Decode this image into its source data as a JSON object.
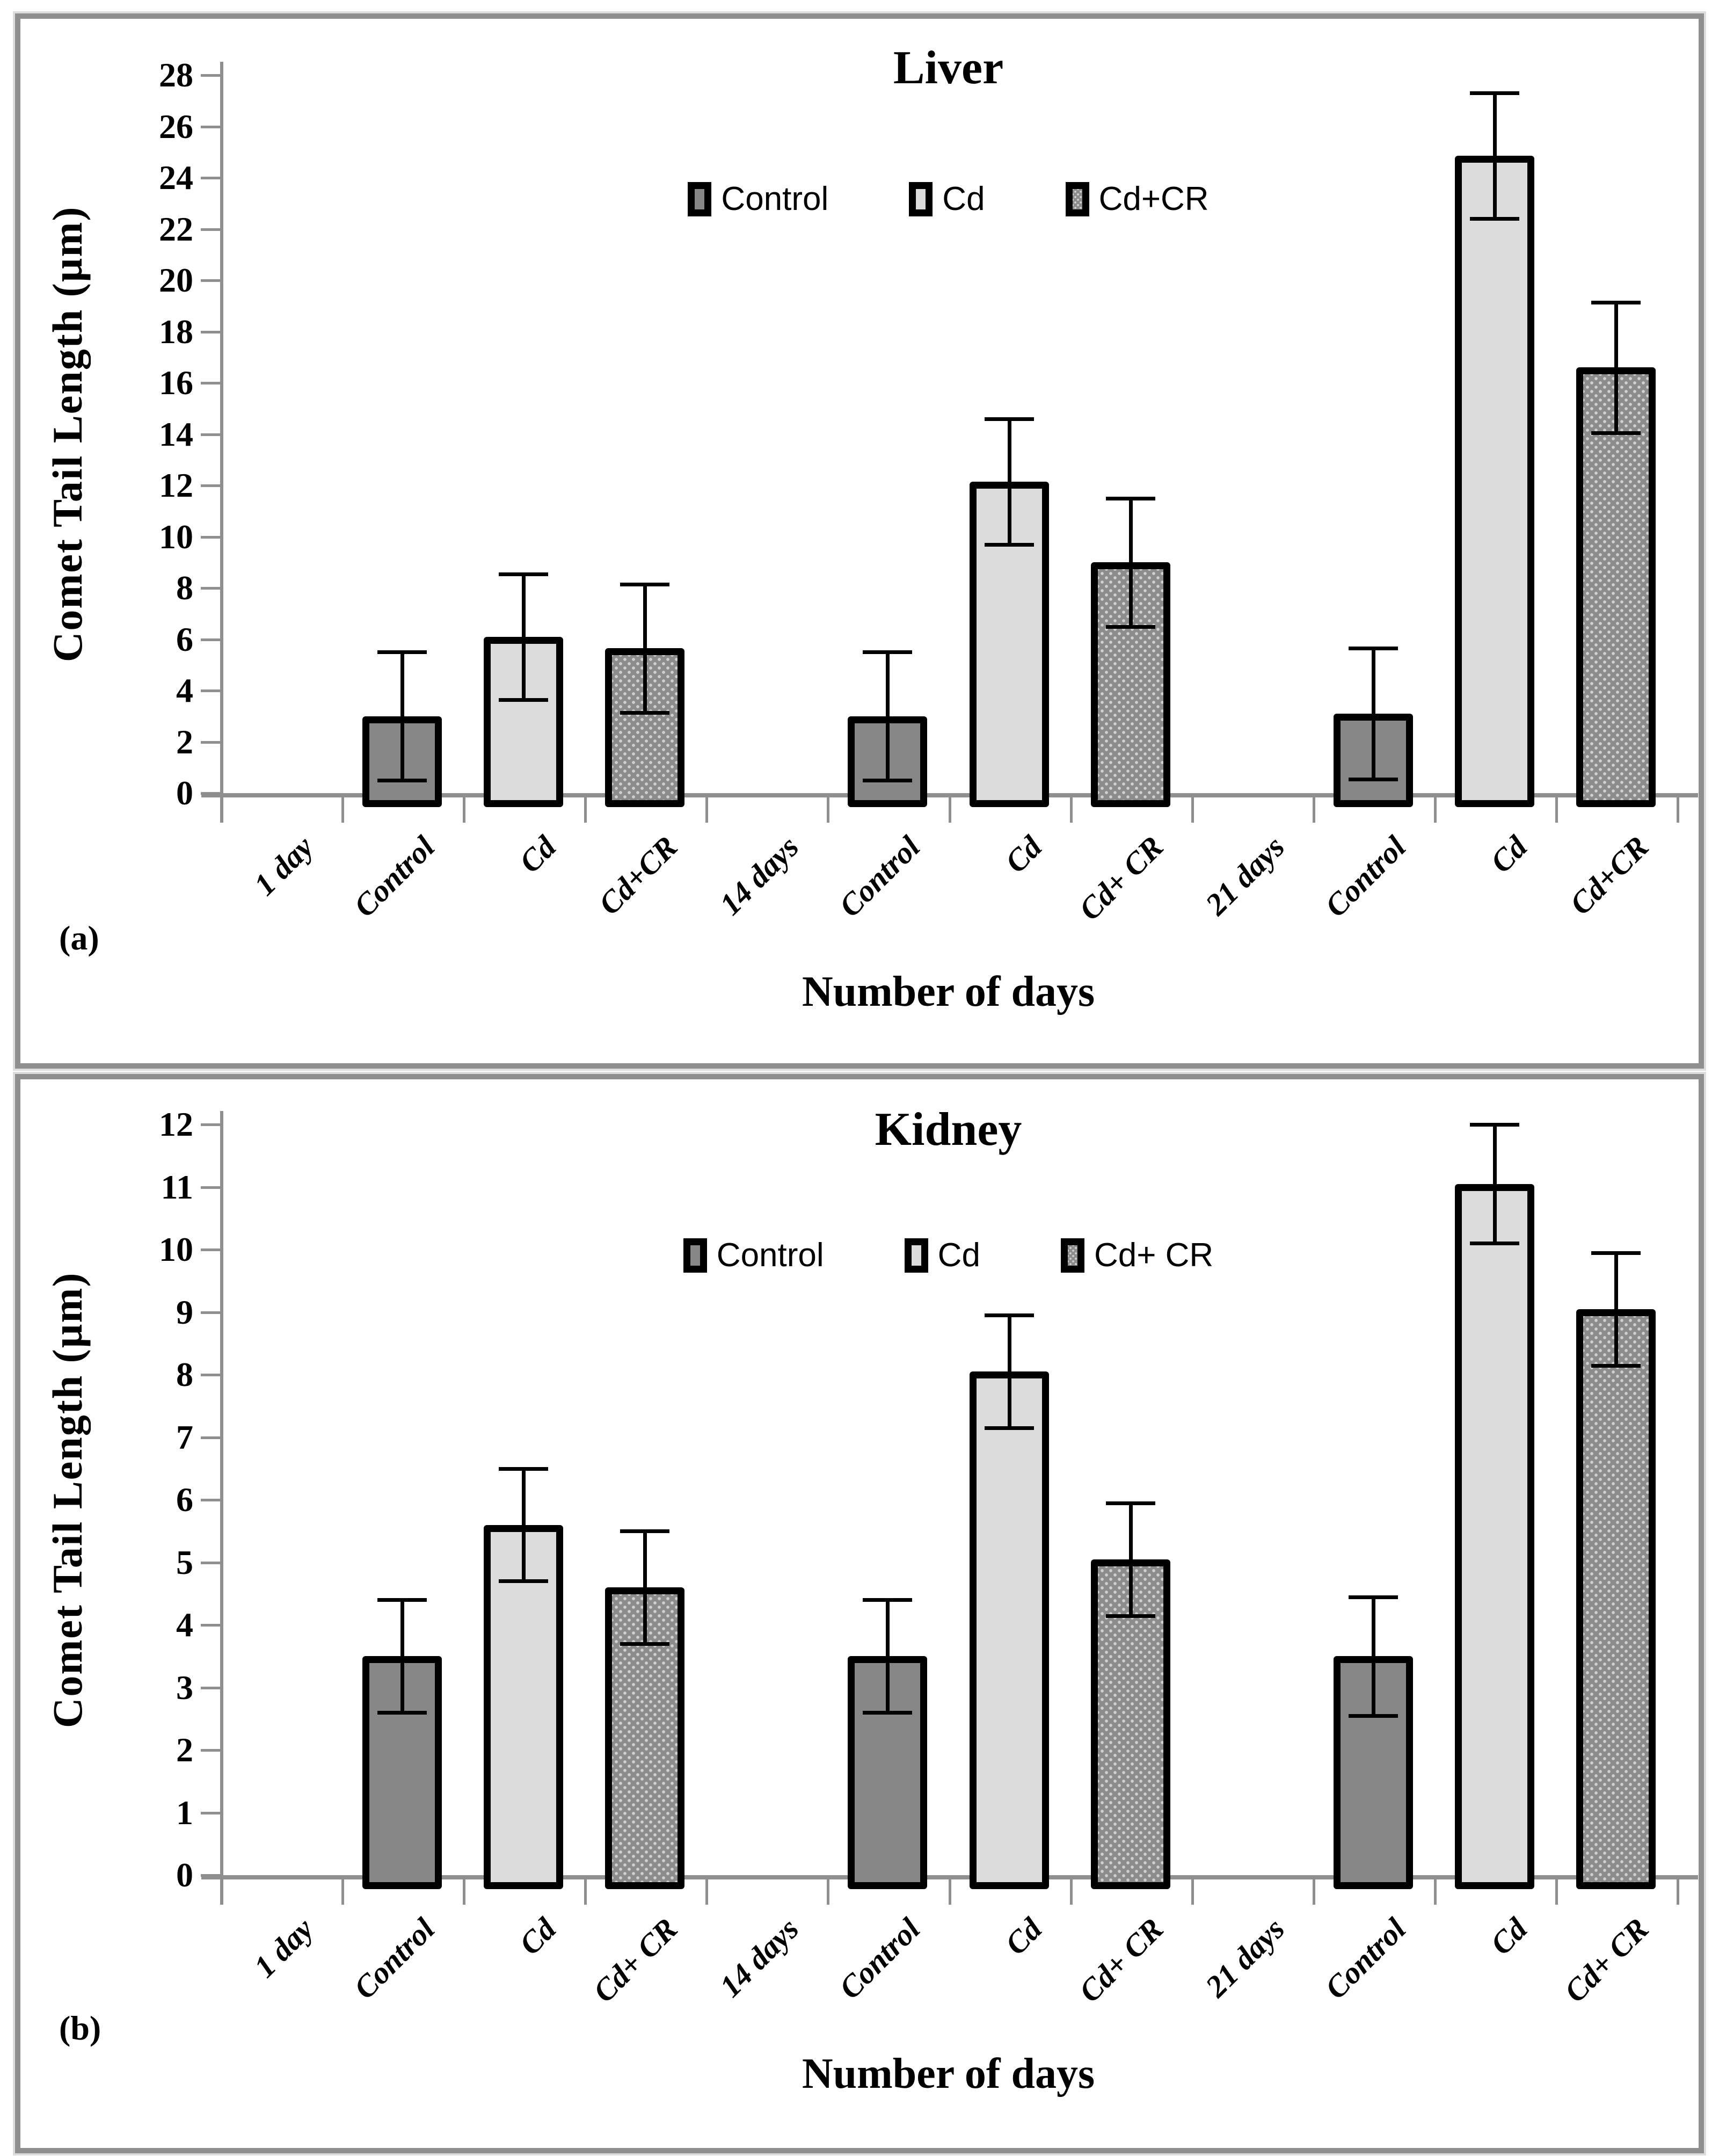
{
  "figure": {
    "description": "Two stacked bar-chart panels of comet tail length in liver and kidney after Cd exposure",
    "panel_count": 2
  },
  "colors": {
    "control_fill": "#878787",
    "cd_fill": "#dcdcdc",
    "cdcr_fill_base": "#8c8c8c",
    "cdcr_fill_dot": "#cfcfcf",
    "bar_border": "#000000",
    "axis": "#8f8f8f",
    "error_bar": "#000000",
    "panel_frame": "#8f8f8f"
  },
  "chart_data": [
    {
      "type": "bar",
      "panel_letter": "(a)",
      "title": "Liver",
      "xlabel": "Number of days",
      "ylabel": "Comet Tail Length (µm)",
      "ylim": [
        0,
        28
      ],
      "ytick_step": 2,
      "grid": false,
      "legend_position": "top-center-inside",
      "legend": [
        {
          "label": "Control",
          "style": "control"
        },
        {
          "label": "Cd",
          "style": "cd"
        },
        {
          "label": "Cd+CR",
          "style": "cdcr"
        }
      ],
      "categories": [
        "1 day",
        "Control",
        "Cd",
        "Cd+CR",
        "14 days",
        "Control",
        "Cd",
        "Cd+ CR",
        "21 days",
        "Control",
        "Cd",
        "Cd+CR"
      ],
      "series": [
        {
          "name": "Control",
          "style": "control",
          "points": [
            {
              "category_index": 1,
              "value": 3.0,
              "error": 2.5
            },
            {
              "category_index": 5,
              "value": 3.0,
              "error": 2.5
            },
            {
              "category_index": 9,
              "value": 3.1,
              "error": 2.55
            }
          ]
        },
        {
          "name": "Cd",
          "style": "cd",
          "points": [
            {
              "category_index": 2,
              "value": 6.1,
              "error": 2.45
            },
            {
              "category_index": 6,
              "value": 12.15,
              "error": 2.45
            },
            {
              "category_index": 10,
              "value": 24.85,
              "error": 2.45
            }
          ]
        },
        {
          "name": "Cd+CR",
          "style": "cdcr",
          "points": [
            {
              "category_index": 3,
              "value": 5.65,
              "error": 2.5
            },
            {
              "category_index": 7,
              "value": 9.0,
              "error": 2.5
            },
            {
              "category_index": 11,
              "value": 16.6,
              "error": 2.55
            }
          ]
        }
      ]
    },
    {
      "type": "bar",
      "panel_letter": "(b)",
      "title": "Kidney",
      "xlabel": "Number of days",
      "ylabel": "Comet Tail Length (µm)",
      "ylim": [
        0,
        12
      ],
      "ytick_step": 1,
      "grid": false,
      "legend_position": "top-center-inside",
      "legend": [
        {
          "label": "Control",
          "style": "control"
        },
        {
          "label": "Cd",
          "style": "cd"
        },
        {
          "label": "Cd+ CR",
          "style": "cdcr"
        }
      ],
      "categories": [
        "1 day",
        "Control",
        "Cd",
        "Cd+ CR",
        "14 days",
        "Control",
        "Cd",
        "Cd+ CR",
        "21 days",
        "Control",
        "Cd",
        "Cd+ CR"
      ],
      "series": [
        {
          "name": "Control",
          "style": "control",
          "points": [
            {
              "category_index": 1,
              "value": 3.5,
              "error": 0.9
            },
            {
              "category_index": 5,
              "value": 3.5,
              "error": 0.9
            },
            {
              "category_index": 9,
              "value": 3.5,
              "error": 0.95
            }
          ]
        },
        {
          "name": "Cd",
          "style": "cd",
          "points": [
            {
              "category_index": 2,
              "value": 5.6,
              "error": 0.9
            },
            {
              "category_index": 6,
              "value": 8.05,
              "error": 0.9
            },
            {
              "category_index": 10,
              "value": 11.05,
              "error": 0.95
            }
          ]
        },
        {
          "name": "Cd+ CR",
          "style": "cdcr",
          "points": [
            {
              "category_index": 3,
              "value": 4.6,
              "error": 0.9
            },
            {
              "category_index": 7,
              "value": 5.05,
              "error": 0.9
            },
            {
              "category_index": 11,
              "value": 9.05,
              "error": 0.9
            }
          ]
        }
      ]
    }
  ]
}
